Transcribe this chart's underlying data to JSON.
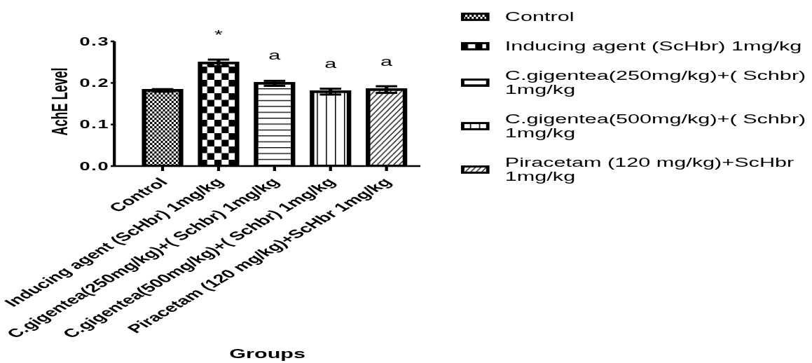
{
  "chart_data": {
    "type": "bar",
    "categories": [
      "Control",
      "Inducing agent (ScHbr) 1mg/kg",
      "C.gigentea(250mg/kg)+( Schbr) 1mg/kg",
      "C.gigentea(500mg/kg)+( Schbr) 1mg/kg",
      "Piracetam (120 mg/kg)+ScHbr 1mg/kg"
    ],
    "series": [
      {
        "name": "Control",
        "color": "#000000",
        "values": [
          0.182,
          null,
          null,
          null,
          null
        ],
        "errors": [
          0.003,
          null,
          null,
          null,
          null
        ]
      },
      {
        "name": "Inducing agent (ScHbr) 1mg/kg",
        "color": "#000000",
        "values": [
          null,
          0.248,
          null,
          null,
          null
        ],
        "errors": [
          null,
          0.008,
          null,
          null,
          null
        ]
      },
      {
        "name": "C.gigentea(250mg/kg)+( Schbr) 1mg/kg",
        "color": "#000000",
        "values": [
          null,
          null,
          0.199,
          null,
          null
        ],
        "errors": [
          null,
          null,
          0.006,
          null,
          null
        ]
      },
      {
        "name": "C.gigentea(500mg/kg)+( Schbr) 1mg/kg",
        "color": "#000000",
        "values": [
          null,
          null,
          null,
          0.179,
          null
        ],
        "errors": [
          null,
          null,
          null,
          0.007,
          null
        ]
      },
      {
        "name": "Piracetam (120 mg/kg)+ScHbr 1mg/kg",
        "color": "#000000",
        "values": [
          null,
          null,
          null,
          null,
          0.184
        ],
        "errors": [
          null,
          null,
          null,
          null,
          0.008
        ]
      }
    ],
    "xlabel": "Groups",
    "ylabel": "AchE Level",
    "ylim": [
      0,
      0.3
    ],
    "yticks": [
      {
        "value": 0,
        "label": "0.0"
      },
      0.1,
      0.2,
      0.3
    ],
    "annotations": [
      {
        "text": "*",
        "x": "Inducing agent (ScHbr) 1mg/kg",
        "y": 0.248
      },
      {
        "text": "a",
        "x": "C.gigentea(250mg/kg)+( Schbr) 1mg/kg",
        "y": 0.199
      },
      {
        "text": "a",
        "x": "C.gigentea(500mg/kg)+( Schbr) 1mg/kg",
        "y": 0.179
      },
      {
        "text": "a",
        "x": "Piracetam (120 mg/kg)+ScHbr 1mg/kg",
        "y": 0.184
      }
    ],
    "legend": "right"
  }
}
